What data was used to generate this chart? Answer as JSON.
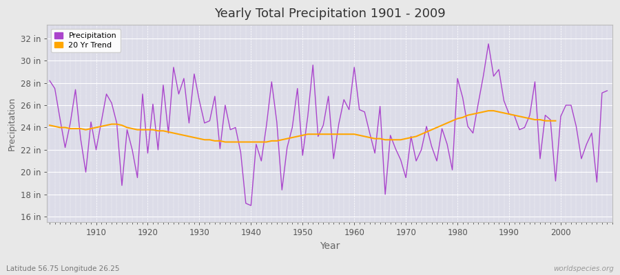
{
  "title": "Yearly Total Precipitation 1901 - 2009",
  "xlabel": "Year",
  "ylabel": "Precipitation",
  "subtitle": "Latitude 56.75 Longitude 26.25",
  "watermark": "worldspecies.org",
  "years": [
    1901,
    1902,
    1903,
    1904,
    1905,
    1906,
    1907,
    1908,
    1909,
    1910,
    1911,
    1912,
    1913,
    1914,
    1915,
    1916,
    1917,
    1918,
    1919,
    1920,
    1921,
    1922,
    1923,
    1924,
    1925,
    1926,
    1927,
    1928,
    1929,
    1930,
    1931,
    1932,
    1933,
    1934,
    1935,
    1936,
    1937,
    1938,
    1939,
    1940,
    1941,
    1942,
    1943,
    1944,
    1945,
    1946,
    1947,
    1948,
    1949,
    1950,
    1951,
    1952,
    1953,
    1954,
    1955,
    1956,
    1957,
    1958,
    1959,
    1960,
    1961,
    1962,
    1963,
    1964,
    1965,
    1966,
    1967,
    1968,
    1969,
    1970,
    1971,
    1972,
    1973,
    1974,
    1975,
    1976,
    1977,
    1978,
    1979,
    1980,
    1981,
    1982,
    1983,
    1984,
    1985,
    1986,
    1987,
    1988,
    1989,
    1990,
    1991,
    1992,
    1993,
    1994,
    1995,
    1996,
    1997,
    1998,
    1999,
    2000,
    2001,
    2002,
    2003,
    2004,
    2005,
    2006,
    2007,
    2008,
    2009
  ],
  "precip": [
    28.2,
    27.5,
    24.8,
    22.2,
    24.4,
    27.4,
    23.0,
    20.0,
    24.5,
    22.0,
    24.5,
    27.0,
    26.2,
    24.4,
    18.8,
    23.8,
    22.0,
    19.5,
    27.0,
    21.7,
    26.1,
    22.0,
    27.8,
    23.5,
    29.4,
    27.0,
    28.4,
    24.4,
    28.8,
    26.4,
    24.4,
    24.6,
    26.8,
    22.1,
    26.0,
    23.8,
    24.0,
    21.8,
    17.2,
    17.0,
    22.5,
    21.0,
    24.2,
    28.1,
    24.5,
    18.4,
    22.2,
    24.0,
    27.5,
    21.5,
    25.0,
    29.6,
    23.2,
    24.2,
    26.8,
    21.2,
    24.3,
    26.5,
    25.6,
    29.4,
    25.6,
    25.4,
    23.5,
    21.7,
    25.9,
    18.0,
    23.3,
    22.1,
    21.1,
    19.5,
    23.2,
    21.0,
    22.0,
    24.1,
    22.3,
    21.0,
    23.9,
    22.5,
    20.2,
    28.4,
    26.7,
    24.1,
    23.5,
    26.1,
    28.6,
    31.5,
    28.6,
    29.2,
    26.4,
    25.2,
    25.1,
    23.8,
    24.0,
    25.1,
    28.1,
    21.2,
    25.1,
    24.7,
    19.2,
    25.0,
    26.0,
    26.0,
    24.1,
    21.2,
    22.5,
    23.5,
    19.1,
    27.1,
    27.3
  ],
  "trend": [
    24.2,
    24.1,
    24.0,
    24.0,
    23.9,
    23.9,
    23.9,
    23.8,
    23.9,
    24.0,
    24.1,
    24.2,
    24.3,
    24.3,
    24.2,
    24.0,
    23.9,
    23.8,
    23.8,
    23.8,
    23.8,
    23.7,
    23.7,
    23.6,
    23.5,
    23.4,
    23.3,
    23.2,
    23.1,
    23.0,
    22.9,
    22.9,
    22.8,
    22.8,
    22.7,
    22.7,
    22.7,
    22.7,
    22.7,
    22.7,
    22.7,
    22.7,
    22.7,
    22.8,
    22.8,
    22.9,
    23.0,
    23.1,
    23.2,
    23.3,
    23.4,
    23.4,
    23.4,
    23.4,
    23.4,
    23.4,
    23.4,
    23.4,
    23.4,
    23.4,
    23.3,
    23.2,
    23.1,
    23.0,
    23.0,
    22.9,
    22.9,
    22.9,
    22.9,
    23.0,
    23.1,
    23.2,
    23.4,
    23.6,
    23.8,
    24.0,
    24.2,
    24.4,
    24.6,
    24.8,
    24.9,
    25.1,
    25.2,
    25.3,
    25.4,
    25.5,
    25.5,
    25.4,
    25.3,
    25.2,
    25.1,
    25.0,
    24.9,
    24.8,
    24.7,
    24.7,
    24.6,
    24.6,
    24.6
  ],
  "precip_color": "#AA44CC",
  "trend_color": "#FFA500",
  "bg_color": "#E8E8E8",
  "plot_bg_color": "#DCDCE8",
  "grid_color": "#FFFFFF",
  "title_color": "#333333",
  "ytick_labels": [
    "16 in",
    "18 in",
    "20 in",
    "22 in",
    "24 in",
    "26 in",
    "28 in",
    "30 in",
    "32 in"
  ],
  "ytick_values": [
    16,
    18,
    20,
    22,
    24,
    26,
    28,
    30,
    32
  ],
  "ylim": [
    15.5,
    33.2
  ],
  "xlim": [
    1900.5,
    2010
  ]
}
